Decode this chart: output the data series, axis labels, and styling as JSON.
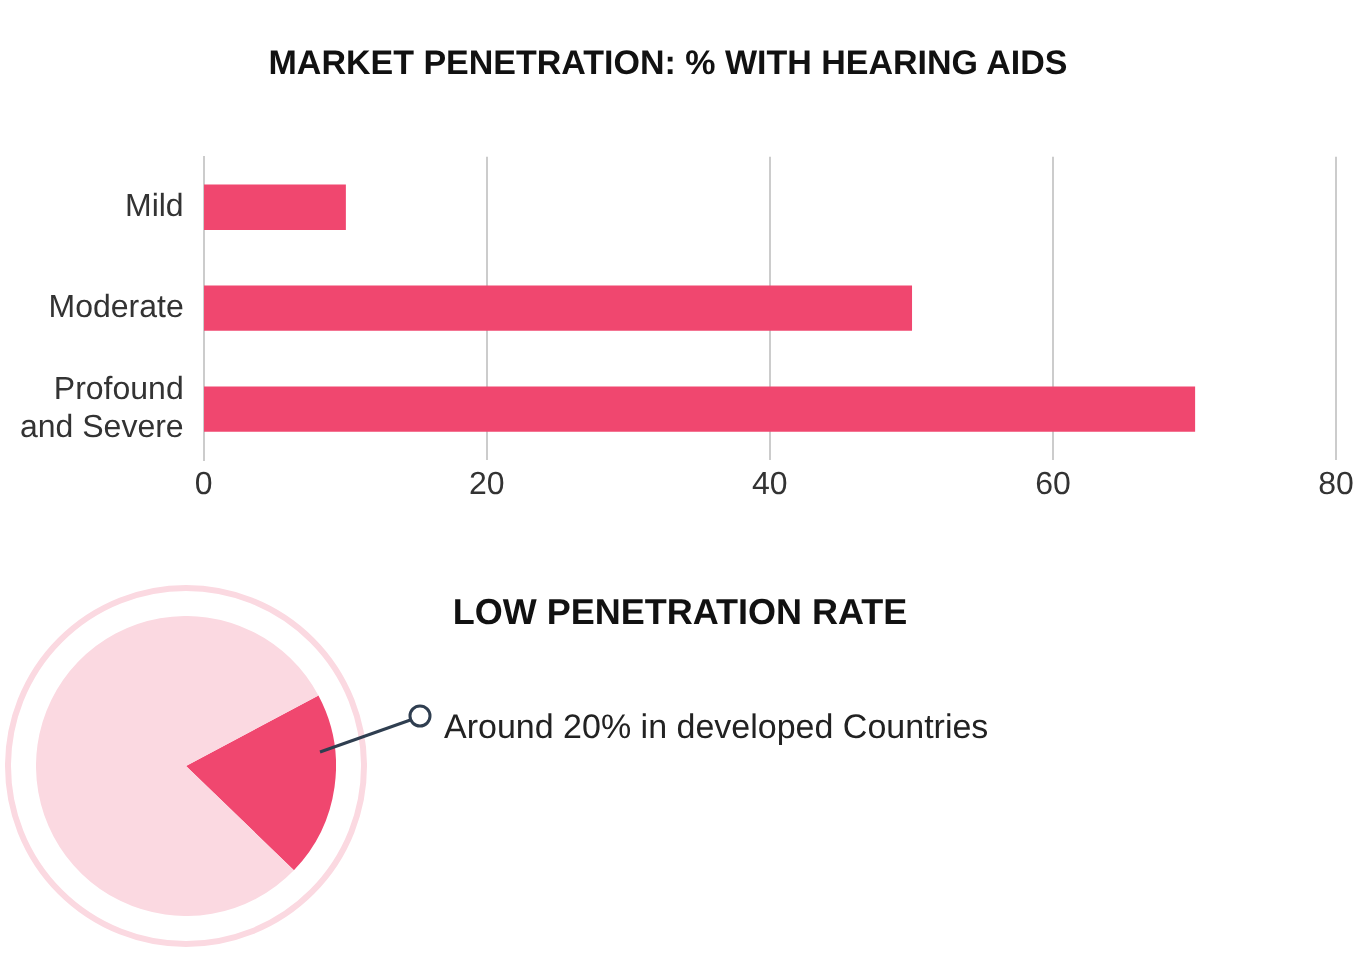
{
  "chart_data": [
    {
      "type": "bar",
      "title": "MARKET PENETRATION: % WITH HEARING AIDS",
      "orientation": "horizontal",
      "categories": [
        "Mild",
        "Moderate",
        "Profound and Severe"
      ],
      "values": [
        10,
        50,
        70
      ],
      "color": "#f0476f",
      "xlim": [
        0,
        80
      ],
      "xticks": [
        0,
        20,
        40,
        60,
        80
      ],
      "grid": "x",
      "legend": false
    },
    {
      "type": "pie",
      "title": "LOW PENETRATION RATE",
      "categories": [
        null,
        null
      ],
      "values": [
        20,
        80
      ],
      "colors": [
        "#f0476f",
        "#fbd9e1"
      ],
      "annotations": [
        "Around 20% in developed Countries"
      ],
      "legend": false
    }
  ]
}
